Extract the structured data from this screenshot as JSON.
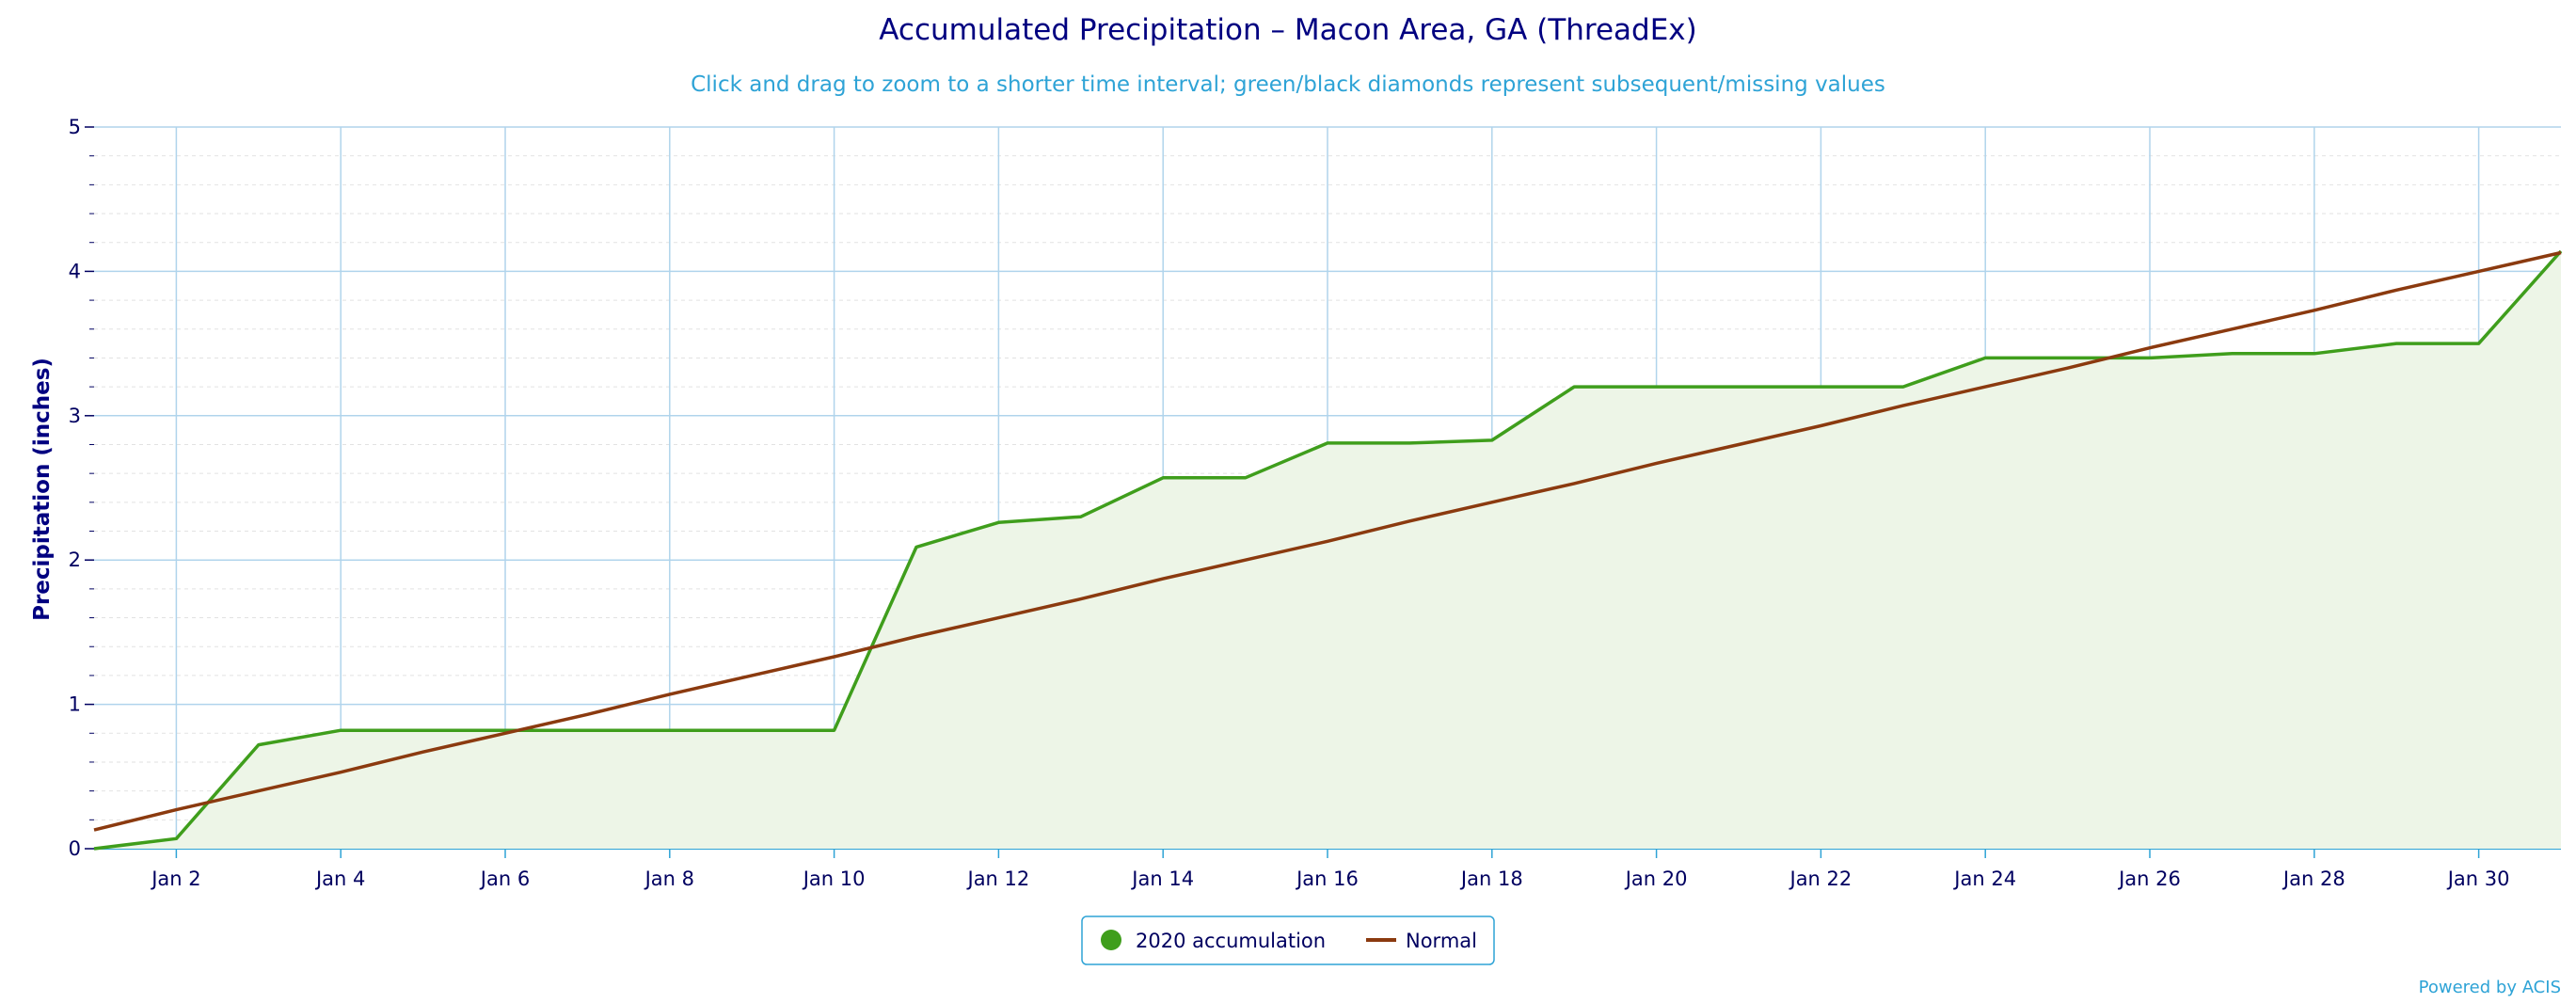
{
  "chart_data": {
    "type": "line",
    "title": "Accumulated Precipitation – Macon Area, GA (ThreadEx)",
    "subtitle": "Click and drag to zoom to a shorter time interval; green/black diamonds represent subsequent/missing values",
    "xlabel": "",
    "ylabel": "Precipitation (inches)",
    "ylim": [
      0,
      5
    ],
    "yticks": [
      "0",
      "1",
      "2",
      "3",
      "4",
      "5"
    ],
    "xlim": [
      "Jan 1",
      "Jan 31"
    ],
    "xticks": [
      "Jan 2",
      "Jan 4",
      "Jan 6",
      "Jan 8",
      "Jan 10",
      "Jan 12",
      "Jan 14",
      "Jan 16",
      "Jan 18",
      "Jan 20",
      "Jan 22",
      "Jan 24",
      "Jan 26",
      "Jan 28",
      "Jan 30"
    ],
    "x": [
      "Jan 1",
      "Jan 2",
      "Jan 3",
      "Jan 4",
      "Jan 5",
      "Jan 6",
      "Jan 7",
      "Jan 8",
      "Jan 9",
      "Jan 10",
      "Jan 11",
      "Jan 12",
      "Jan 13",
      "Jan 14",
      "Jan 15",
      "Jan 16",
      "Jan 17",
      "Jan 18",
      "Jan 19",
      "Jan 20",
      "Jan 21",
      "Jan 22",
      "Jan 23",
      "Jan 24",
      "Jan 25",
      "Jan 26",
      "Jan 27",
      "Jan 28",
      "Jan 29",
      "Jan 30",
      "Jan 31"
    ],
    "grid": true,
    "legend_position": "bottom-center",
    "series": [
      {
        "name": "2020 accumulation",
        "type": "area",
        "color": "#3f9e1c",
        "fill": "#edf5e7",
        "values": [
          0.0,
          0.07,
          0.72,
          0.82,
          0.82,
          0.82,
          0.82,
          0.82,
          0.82,
          0.82,
          2.09,
          2.26,
          2.3,
          2.57,
          2.57,
          2.81,
          2.81,
          2.83,
          3.2,
          3.2,
          3.2,
          3.2,
          3.2,
          3.4,
          3.4,
          3.4,
          3.43,
          3.43,
          3.5,
          3.5,
          4.14
        ]
      },
      {
        "name": "Normal",
        "type": "line",
        "color": "#8b3a0f",
        "values": [
          0.13,
          0.27,
          0.4,
          0.53,
          0.67,
          0.8,
          0.93,
          1.07,
          1.2,
          1.33,
          1.47,
          1.6,
          1.73,
          1.87,
          2.0,
          2.13,
          2.27,
          2.4,
          2.53,
          2.67,
          2.8,
          2.93,
          3.07,
          3.2,
          3.33,
          3.47,
          3.6,
          3.73,
          3.87,
          4.0,
          4.13
        ]
      }
    ]
  },
  "credits": "Powered by ACIS"
}
